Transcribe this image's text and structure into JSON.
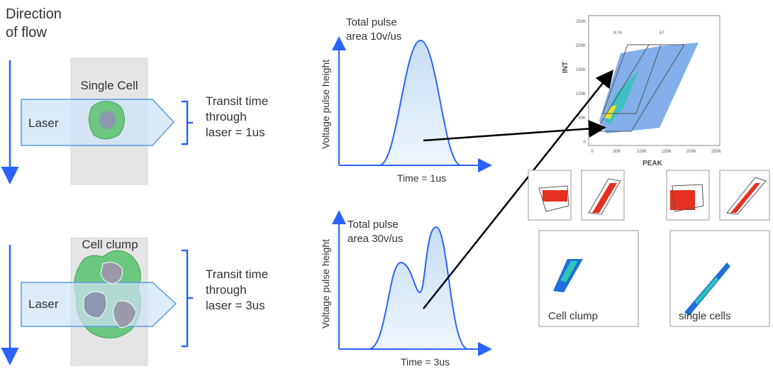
{
  "flow_label": [
    "Direction",
    "of flow"
  ],
  "single": {
    "title": "Single Cell",
    "laser": "Laser",
    "transit": [
      "Transit time",
      "through",
      "laser = 1us"
    ]
  },
  "clump": {
    "title": "Cell clump",
    "laser": "Laser",
    "transit": [
      "Transit time",
      "through",
      "laser = 3us"
    ]
  },
  "pulse_single": {
    "title": [
      "Total pulse",
      "area 10v/us"
    ],
    "y_label": "Voltage pulse height",
    "x_label": "Time = 1us"
  },
  "pulse_clump": {
    "title": [
      "Total pulse",
      "area 30v/us"
    ],
    "y_label": "Voltage pulse height",
    "x_label": "Time = 3us"
  },
  "scatter": {
    "y_label": "INT",
    "x_label": "PEAK",
    "yticks": [
      "250K",
      "200K",
      "150K",
      "100K",
      "50K",
      "0"
    ],
    "xticks": [
      "0",
      "50K",
      "100K",
      "150K",
      "200K",
      "250K"
    ],
    "gates": [
      "9.74",
      "67"
    ]
  },
  "small_plots": [
    "Cell clump",
    "single cells"
  ]
}
